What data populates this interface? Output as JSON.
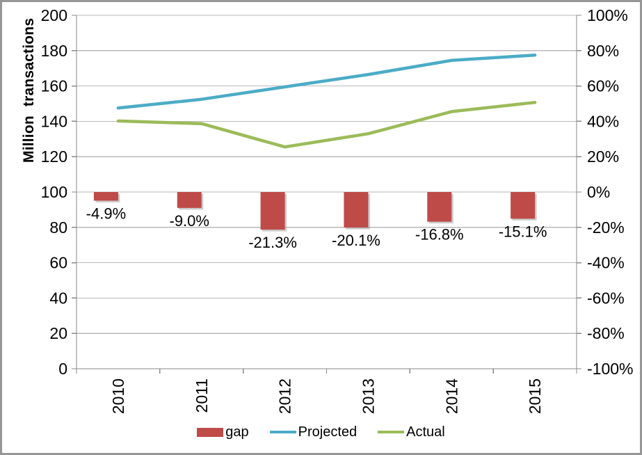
{
  "window": {
    "background": "#ffffff",
    "border_color": "#969696"
  },
  "chart_data": {
    "type": "combo (bar + line, dual axis)",
    "title": "",
    "categories": [
      "2010",
      "2011",
      "2012",
      "2013",
      "2014",
      "2015"
    ],
    "series": [
      {
        "name": "gap",
        "type": "bar",
        "axis": "right",
        "color": "#be4b48",
        "values": [
          -4.9,
          -9.0,
          -21.3,
          -20.1,
          -16.8,
          -15.1
        ],
        "data_labels": [
          "-4.9%",
          "-9.0%",
          "-21.3%",
          "-20.1%",
          "-16.8%",
          "-15.1%"
        ]
      },
      {
        "name": "Projected",
        "type": "line",
        "axis": "left",
        "color": "#4bacc6",
        "values": [
          147.5,
          152.5,
          159.5,
          166.5,
          174.5,
          177.5
        ]
      },
      {
        "name": "Actual",
        "type": "line",
        "axis": "left",
        "color": "#9bbb59",
        "values": [
          140.2,
          138.7,
          125.5,
          133.0,
          145.5,
          150.7
        ]
      }
    ],
    "left_axis": {
      "title": "Million transactions",
      "min": 0,
      "max": 200,
      "step": 20,
      "tick_labels": [
        "200",
        "180",
        "160",
        "140",
        "120",
        "100",
        "80",
        "60",
        "40",
        "20",
        "0"
      ]
    },
    "right_axis": {
      "min": -100,
      "max": 100,
      "step": 20,
      "format": "percent",
      "tick_labels": [
        "100%",
        "80%",
        "60%",
        "40%",
        "20%",
        "0%",
        "-20%",
        "-40%",
        "-60%",
        "-80%",
        "-100%"
      ]
    },
    "x_axis": {
      "tick_labels": [
        "2010",
        "2011",
        "2012",
        "2013",
        "2014",
        "2015"
      ],
      "label_rotation_deg": -90
    },
    "legend": {
      "position": "bottom",
      "entries": [
        {
          "label": "gap",
          "swatch": "bar",
          "color": "#be4b48"
        },
        {
          "label": "Projected",
          "swatch": "line",
          "color": "#4bacc6"
        },
        {
          "label": "Actual",
          "swatch": "line",
          "color": "#9bbb59"
        }
      ]
    },
    "grid": {
      "horizontal": true,
      "color": "#b9b9b9"
    },
    "axis_line_color": "#8a8a8a",
    "text_color": "#000000"
  }
}
